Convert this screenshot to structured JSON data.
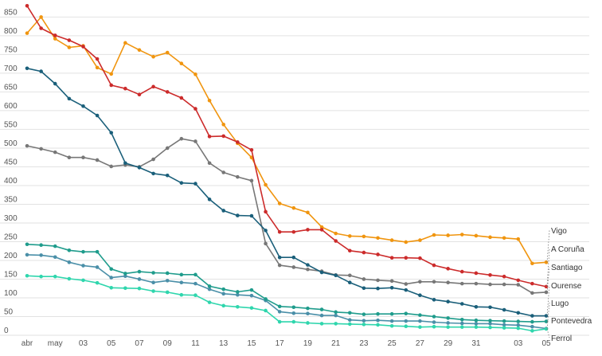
{
  "chart_data": {
    "type": "line",
    "title": "",
    "xlabel": "",
    "ylabel": "",
    "ylim": [
      0,
      870
    ],
    "y_ticks": [
      0,
      50,
      100,
      150,
      200,
      250,
      300,
      350,
      400,
      450,
      500,
      550,
      600,
      650,
      700,
      750,
      800,
      850
    ],
    "grid": true,
    "x_index_range": [
      0,
      37
    ],
    "x_ticks": [
      {
        "i": 0,
        "label": "abr"
      },
      {
        "i": 2,
        "label": "may"
      },
      {
        "i": 4,
        "label": "03"
      },
      {
        "i": 6,
        "label": "05"
      },
      {
        "i": 8,
        "label": "07"
      },
      {
        "i": 10,
        "label": "09"
      },
      {
        "i": 12,
        "label": "11"
      },
      {
        "i": 14,
        "label": "13"
      },
      {
        "i": 16,
        "label": "15"
      },
      {
        "i": 18,
        "label": "17"
      },
      {
        "i": 20,
        "label": "19"
      },
      {
        "i": 22,
        "label": "21"
      },
      {
        "i": 24,
        "label": "23"
      },
      {
        "i": 26,
        "label": "25"
      },
      {
        "i": 28,
        "label": "27"
      },
      {
        "i": 30,
        "label": "29"
      },
      {
        "i": 32,
        "label": "31"
      },
      {
        "i": 35,
        "label": "03"
      },
      {
        "i": 37,
        "label": "05"
      }
    ],
    "series": [
      {
        "name": "Vigo",
        "color": "#f0950f",
        "values": [
          807,
          850,
          792,
          769,
          773,
          715,
          698,
          781,
          762,
          744,
          755,
          726,
          697,
          627,
          563,
          513,
          475,
          402,
          352,
          340,
          328,
          289,
          272,
          265,
          264,
          260,
          254,
          249,
          254,
          268,
          267,
          269,
          266,
          262,
          260,
          257,
          192,
          195
        ]
      },
      {
        "name": "A Coruña",
        "color": "#cc2b2b",
        "values": [
          880,
          820,
          801,
          788,
          771,
          738,
          668,
          659,
          643,
          664,
          650,
          634,
          605,
          531,
          532,
          516,
          495,
          330,
          276,
          276,
          282,
          282,
          252,
          226,
          221,
          216,
          207,
          207,
          206,
          187,
          178,
          170,
          166,
          161,
          157,
          147,
          138,
          130
        ]
      },
      {
        "name": "Santiago",
        "color": "#777777",
        "values": [
          506,
          498,
          489,
          475,
          475,
          468,
          451,
          455,
          450,
          470,
          500,
          525,
          518,
          460,
          435,
          423,
          413,
          245,
          187,
          182,
          176,
          171,
          161,
          160,
          150,
          147,
          145,
          137,
          143,
          143,
          141,
          138,
          138,
          136,
          136,
          135,
          113,
          115
        ]
      },
      {
        "name": "Ourense",
        "color": "#1a5f7a",
        "values": [
          713,
          705,
          672,
          632,
          612,
          587,
          541,
          460,
          448,
          432,
          427,
          407,
          405,
          363,
          333,
          320,
          319,
          280,
          208,
          208,
          188,
          168,
          160,
          141,
          126,
          125,
          127,
          121,
          107,
          95,
          90,
          84,
          76,
          75,
          68,
          60,
          52,
          52
        ]
      },
      {
        "name": "Lugo",
        "color": "#4a8fa8",
        "values": [
          215,
          214,
          209,
          195,
          186,
          182,
          154,
          158,
          150,
          141,
          146,
          141,
          138,
          123,
          111,
          108,
          106,
          93,
          63,
          59,
          58,
          53,
          53,
          41,
          39,
          40,
          38,
          38,
          38,
          35,
          33,
          32,
          31,
          31,
          28,
          27,
          23,
          18
        ]
      },
      {
        "name": "Pontevedra",
        "color": "#1f9c8c",
        "values": [
          243,
          241,
          238,
          227,
          223,
          223,
          177,
          165,
          170,
          167,
          166,
          162,
          162,
          131,
          123,
          116,
          121,
          97,
          77,
          75,
          72,
          69,
          62,
          60,
          56,
          57,
          57,
          58,
          54,
          50,
          46,
          42,
          40,
          39,
          38,
          37,
          36,
          37
        ]
      },
      {
        "name": "Ferrol",
        "color": "#2fd6ad",
        "values": [
          159,
          157,
          157,
          151,
          147,
          140,
          127,
          126,
          125,
          118,
          115,
          108,
          107,
          88,
          79,
          76,
          73,
          66,
          36,
          36,
          33,
          31,
          31,
          30,
          29,
          28,
          25,
          24,
          22,
          23,
          22,
          22,
          22,
          21,
          20,
          19,
          12,
          17
        ]
      }
    ]
  }
}
